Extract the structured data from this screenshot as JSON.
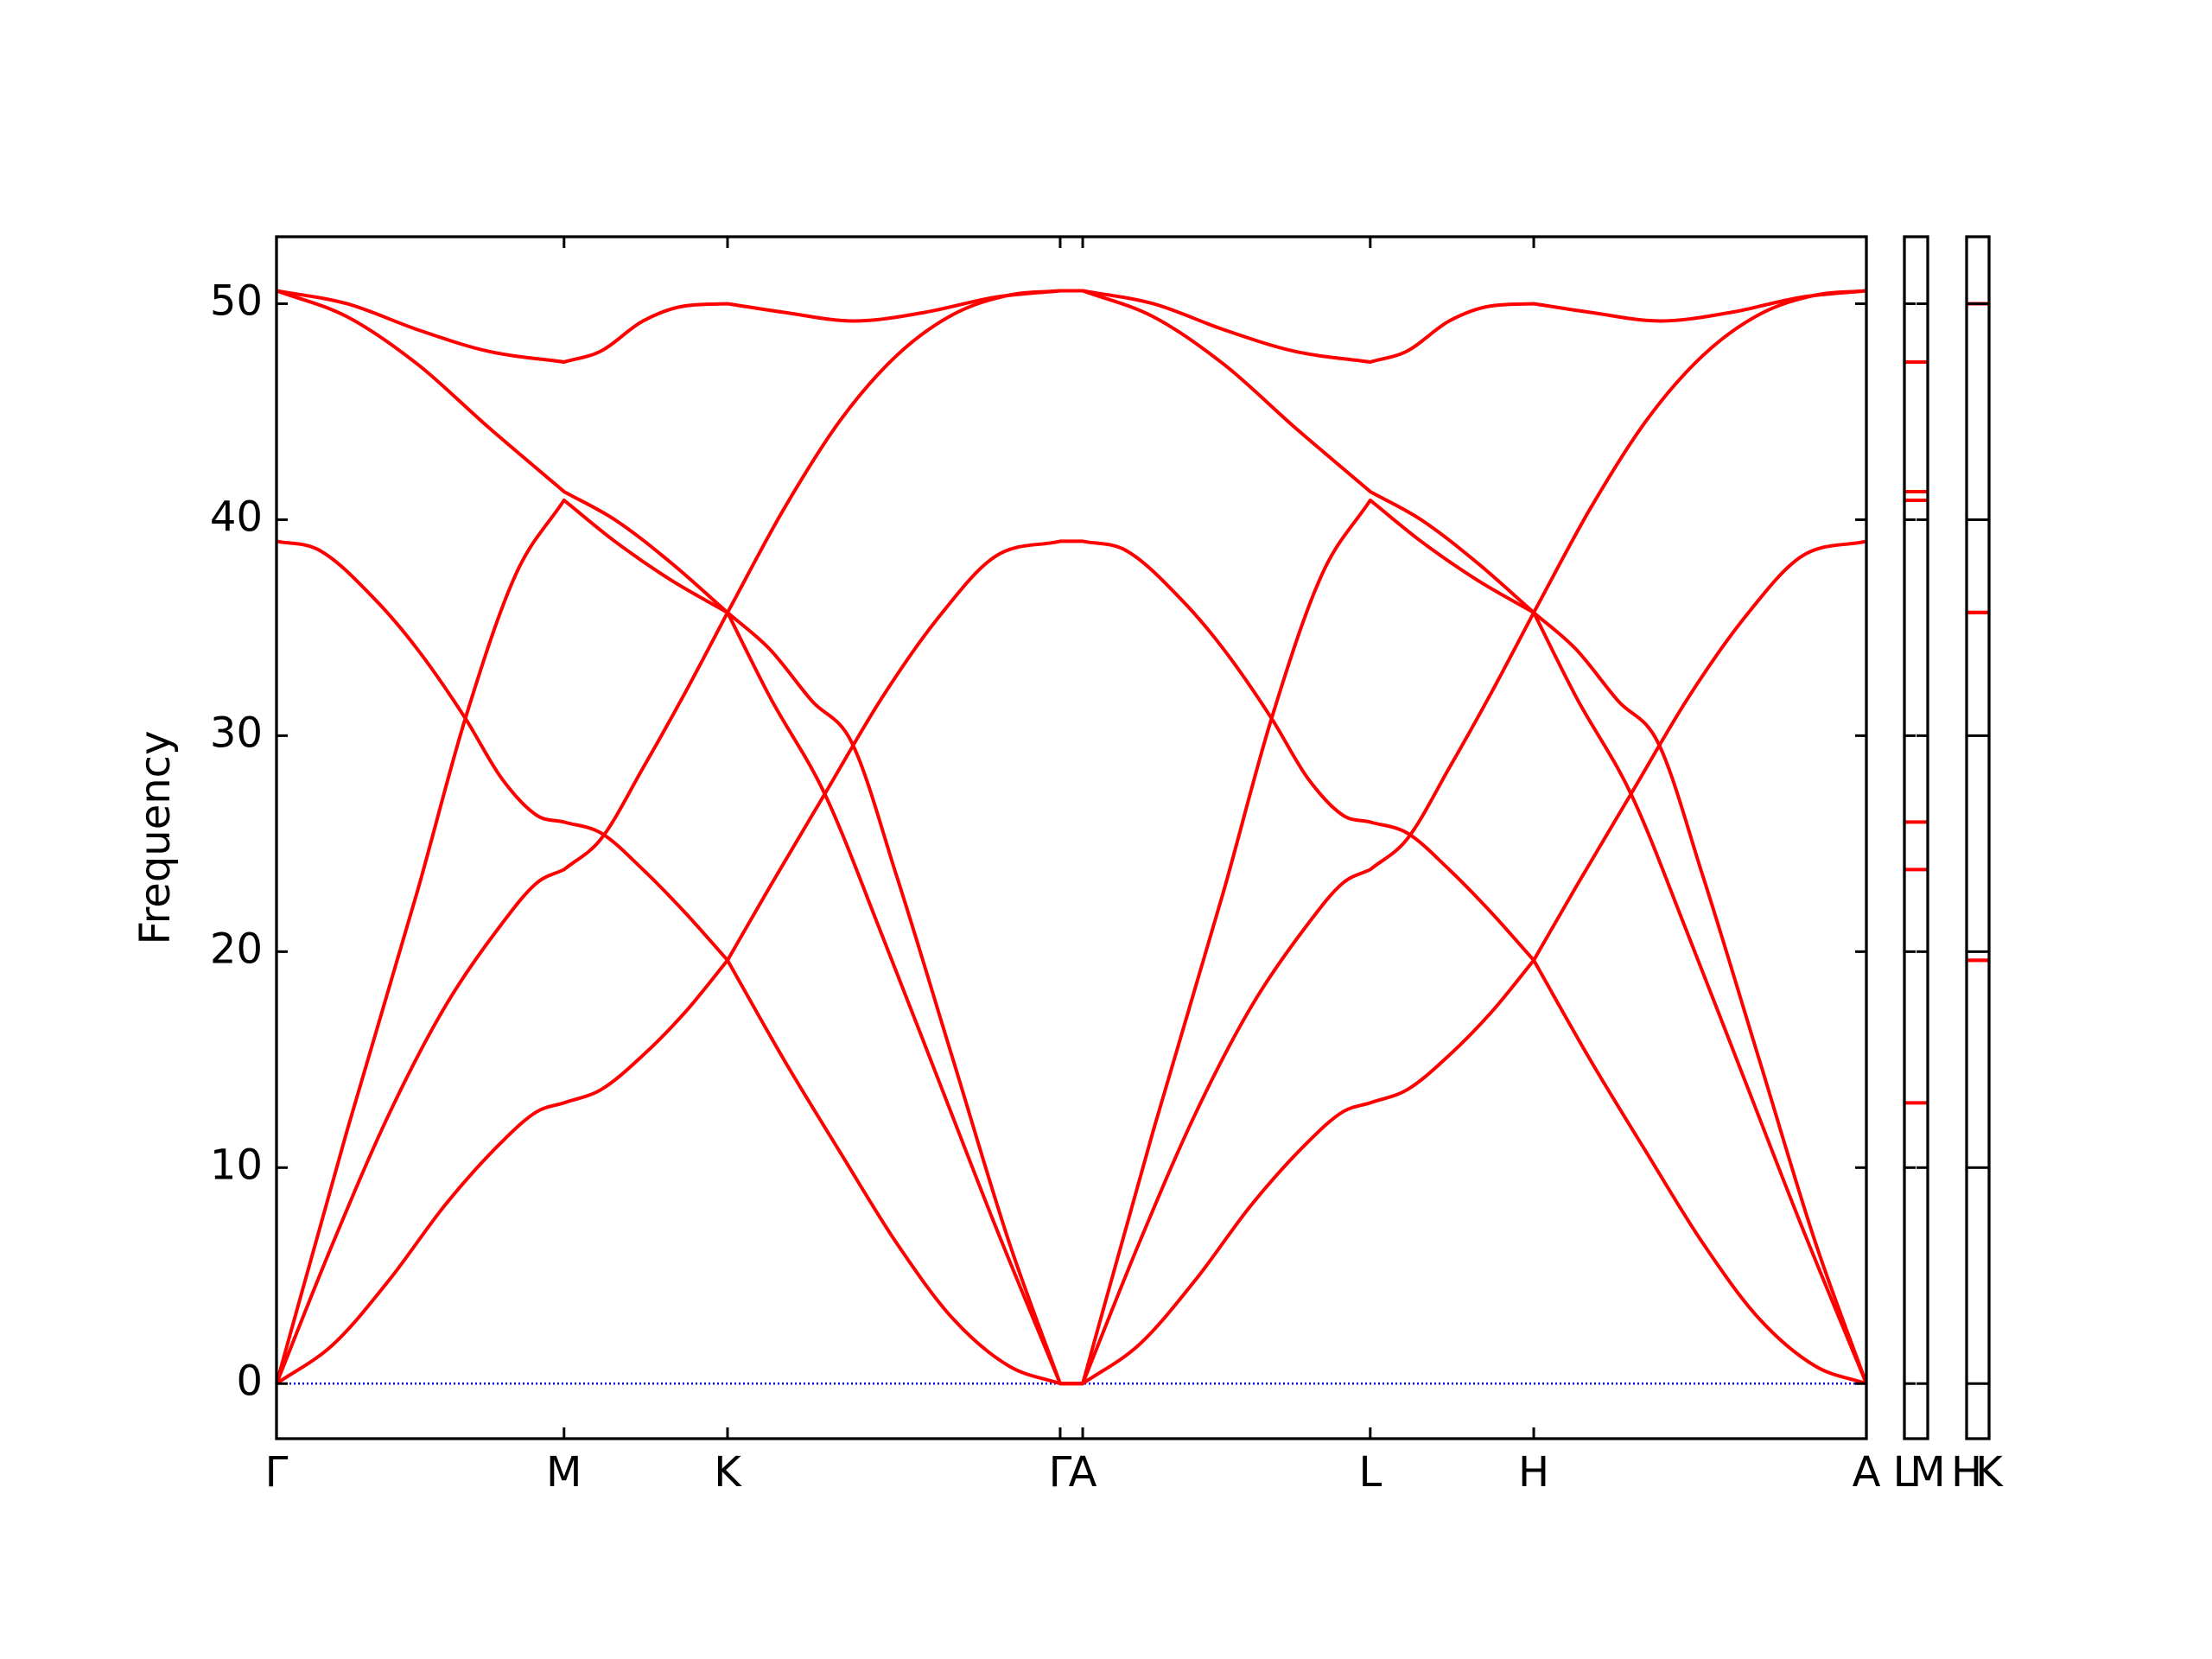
{
  "chart_data": [
    {
      "type": "line",
      "ylabel": "Frequency",
      "xlim": [
        0,
        1.128
      ],
      "ylim": [
        -2.55,
        53.1
      ],
      "xticks": [
        {
          "value": 0,
          "label": "Γ"
        },
        {
          "value": 0.204,
          "label": "M"
        },
        {
          "value": 0.32,
          "label": "K"
        },
        {
          "value": 0.556,
          "label": "Γ"
        },
        {
          "value": 0.572,
          "label": "A"
        },
        {
          "value": 0.776,
          "label": "L"
        },
        {
          "value": 0.892,
          "label": "H"
        },
        {
          "value": 1.128,
          "label": "A"
        }
      ],
      "yticks": [
        0,
        10,
        20,
        30,
        40,
        50
      ],
      "zero_line": {
        "value": 0,
        "color": "#0000ff"
      },
      "series": [
        {
          "color": "#ff0000",
          "x": [
            0,
            0.04,
            0.08,
            0.12,
            0.16,
            0.185,
            0.204,
            0.23,
            0.26,
            0.29,
            0.32,
            0.35,
            0.389,
            0.43,
            0.47,
            0.51,
            0.556,
            0.572,
            0.602,
            0.642,
            0.672,
            0.706,
            0.732,
            0.757,
            0.776,
            0.802,
            0.832,
            0.862,
            0.892,
            0.932,
            0.972,
            1.012,
            1.052,
            1.092,
            1.128
          ],
          "values": [
            0,
            1.8,
            4.8,
            8.3,
            11.2,
            12.6,
            13.0,
            13.6,
            15.2,
            17.2,
            19.6,
            23.0,
            27.3,
            31.8,
            35.5,
            38.3,
            39.0,
            39.0,
            38.6,
            36.3,
            34.0,
            30.8,
            28.0,
            26.3,
            26.0,
            25.5,
            23.8,
            21.8,
            19.6,
            15.0,
            10.7,
            6.5,
            3.0,
            0.8,
            0
          ]
        },
        {
          "color": "#ff0000",
          "x": [
            0,
            0.04,
            0.08,
            0.12,
            0.16,
            0.185,
            0.204,
            0.23,
            0.26,
            0.29,
            0.32,
            0.36,
            0.4,
            0.44,
            0.48,
            0.52,
            0.556,
            0.572,
            0.622,
            0.672,
            0.722,
            0.776,
            0.812,
            0.852,
            0.892,
            0.922,
            0.952,
            0.98,
            1.012,
            1.052,
            1.092,
            1.128
          ],
          "values": [
            0,
            6.5,
            12.5,
            17.5,
            21.3,
            23.2,
            23.8,
            25.2,
            28.5,
            32.0,
            35.7,
            40.5,
            44.6,
            47.6,
            49.5,
            50.4,
            50.6,
            50.6,
            49.4,
            47.2,
            44.3,
            41.3,
            40.0,
            38.0,
            35.7,
            34.0,
            31.6,
            29.7,
            23.5,
            15.0,
            6.5,
            0
          ]
        },
        {
          "color": "#ff0000",
          "x": [
            0,
            0.05,
            0.1,
            0.15,
            0.204,
            0.23,
            0.26,
            0.29,
            0.32,
            0.36,
            0.41,
            0.46,
            0.51,
            0.556,
            0.572,
            0.622,
            0.672,
            0.722,
            0.776,
            0.802,
            0.832,
            0.862,
            0.892,
            0.932,
            0.982,
            1.032,
            1.082,
            1.128
          ],
          "values": [
            50.6,
            50.0,
            48.8,
            47.8,
            47.3,
            47.8,
            49.2,
            49.9,
            50.0,
            49.6,
            49.2,
            49.6,
            50.3,
            50.6,
            50.6,
            50.0,
            48.8,
            47.8,
            47.3,
            47.8,
            49.2,
            49.9,
            50.0,
            49.6,
            49.2,
            49.6,
            50.3,
            50.6
          ]
        },
        {
          "color": "#ff0000",
          "x": [
            0,
            0.03,
            0.07,
            0.1,
            0.134,
            0.16,
            0.185,
            0.204,
            0.23,
            0.26,
            0.29,
            0.32,
            0.36,
            0.4,
            0.44,
            0.48,
            0.52,
            0.556,
            0.572,
            0.612,
            0.652,
            0.692,
            0.732,
            0.757,
            0.776,
            0.802,
            0.832,
            0.862,
            0.892,
            0.922,
            0.961,
            1.002,
            1.042,
            1.082,
            1.128
          ],
          "values": [
            39.0,
            38.6,
            36.3,
            34.0,
            30.8,
            28.0,
            26.3,
            26.0,
            25.5,
            23.8,
            21.8,
            19.6,
            15.0,
            10.7,
            6.5,
            3.0,
            0.8,
            0,
            0,
            1.8,
            4.8,
            8.3,
            11.2,
            12.6,
            13.0,
            13.6,
            15.2,
            17.2,
            19.6,
            23.0,
            27.3,
            31.8,
            35.5,
            38.3,
            39.0
          ]
        },
        {
          "color": "#ff0000",
          "x": [
            0,
            0.05,
            0.1,
            0.134,
            0.17,
            0.204,
            0.24,
            0.28,
            0.32,
            0.35,
            0.389,
            0.43,
            0.47,
            0.51,
            0.556,
            0.572,
            0.612,
            0.652,
            0.692,
            0.732,
            0.757,
            0.776,
            0.802,
            0.832,
            0.862,
            0.892,
            0.932,
            0.972,
            1.012,
            1.052,
            1.092,
            1.128
          ],
          "values": [
            0,
            11.7,
            22.8,
            30.8,
            37.5,
            40.9,
            39.0,
            37.2,
            35.7,
            31.8,
            27.3,
            20.7,
            14.0,
            7.3,
            0,
            0,
            6.5,
            12.5,
            17.5,
            21.3,
            23.2,
            23.8,
            25.2,
            28.5,
            32.0,
            35.7,
            40.5,
            44.6,
            47.6,
            49.5,
            50.4,
            50.6
          ]
        },
        {
          "color": "#ff0000",
          "x": [
            0,
            0.05,
            0.1,
            0.15,
            0.204,
            0.24,
            0.28,
            0.32,
            0.35,
            0.38,
            0.408,
            0.44,
            0.48,
            0.52,
            0.556,
            0.572,
            0.622,
            0.672,
            0.706,
            0.742,
            0.776,
            0.812,
            0.852,
            0.892,
            0.922,
            0.961,
            1.002,
            1.042,
            1.082,
            1.128
          ],
          "values": [
            50.6,
            49.4,
            47.2,
            44.3,
            41.3,
            40.0,
            38.0,
            35.7,
            34.0,
            31.6,
            29.7,
            23.5,
            15.0,
            6.5,
            0,
            0,
            11.7,
            22.8,
            30.8,
            37.5,
            40.9,
            39.0,
            37.2,
            35.7,
            31.8,
            27.3,
            20.7,
            14.0,
            7.3,
            0
          ]
        }
      ]
    },
    {
      "type": "line",
      "xlim": [
        0,
        1
      ],
      "ylim": [
        -2.55,
        53.1
      ],
      "xticks": [
        {
          "value": 0,
          "label": "L"
        },
        {
          "value": 1,
          "label": "M"
        }
      ],
      "yticks": [
        0,
        10,
        20,
        30,
        40,
        50
      ],
      "zero_line": {
        "value": 0,
        "color": "#0000ff"
      },
      "series": [
        {
          "color": "#ff0000",
          "x": [
            0,
            1
          ],
          "values": [
            13.0,
            13.0
          ]
        },
        {
          "color": "#ff0000",
          "x": [
            0,
            1
          ],
          "values": [
            23.8,
            23.8
          ]
        },
        {
          "color": "#ff0000",
          "x": [
            0,
            1
          ],
          "values": [
            26.0,
            26.0
          ]
        },
        {
          "color": "#ff0000",
          "x": [
            0,
            1
          ],
          "values": [
            40.9,
            40.9
          ]
        },
        {
          "color": "#ff0000",
          "x": [
            0,
            1
          ],
          "values": [
            41.3,
            41.3
          ]
        },
        {
          "color": "#ff0000",
          "x": [
            0,
            1
          ],
          "values": [
            47.3,
            47.3
          ]
        }
      ]
    },
    {
      "type": "line",
      "xlim": [
        0,
        1
      ],
      "ylim": [
        -2.55,
        53.1
      ],
      "xticks": [
        {
          "value": 0,
          "label": "H"
        },
        {
          "value": 1,
          "label": "K"
        }
      ],
      "yticks": [
        0,
        10,
        20,
        30,
        40,
        50
      ],
      "zero_line": {
        "value": 0,
        "color": "#0000ff"
      },
      "series": [
        {
          "color": "#ff0000",
          "x": [
            0,
            1
          ],
          "values": [
            19.6,
            19.6
          ]
        },
        {
          "color": "#ff0000",
          "x": [
            0,
            1
          ],
          "values": [
            19.6,
            19.6
          ]
        },
        {
          "color": "#ff0000",
          "x": [
            0,
            1
          ],
          "values": [
            35.7,
            35.7
          ]
        },
        {
          "color": "#ff0000",
          "x": [
            0,
            1
          ],
          "values": [
            35.7,
            35.7
          ]
        },
        {
          "color": "#ff0000",
          "x": [
            0,
            1
          ],
          "values": [
            35.7,
            35.7
          ]
        },
        {
          "color": "#ff0000",
          "x": [
            0,
            1
          ],
          "values": [
            50.0,
            50.0
          ]
        }
      ]
    }
  ]
}
